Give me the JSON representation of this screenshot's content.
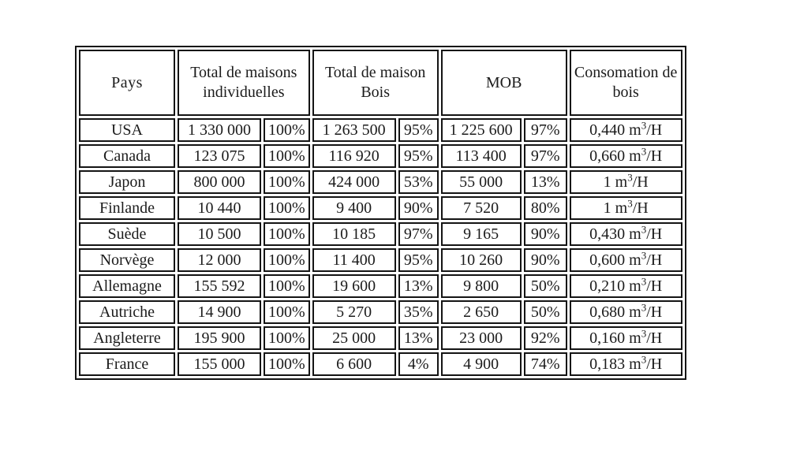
{
  "chart_data": {
    "type": "table",
    "columns": [
      {
        "label": "Pays"
      },
      {
        "label": "Total de maisons individuelles"
      },
      {
        "label": "Total de maison Bois"
      },
      {
        "label": "MOB"
      },
      {
        "label": "Consomation de bois"
      }
    ],
    "unit": {
      "base": "m",
      "exponent": "3",
      "per": "/H"
    },
    "rows": [
      {
        "pays": "USA",
        "total_ind": "1 330 000",
        "total_ind_pct": "100%",
        "bois": "1 263 500",
        "bois_pct": "95%",
        "mob": "1 225 600",
        "mob_pct": "97%",
        "conso": "0,440"
      },
      {
        "pays": "Canada",
        "total_ind": "123 075",
        "total_ind_pct": "100%",
        "bois": "116 920",
        "bois_pct": "95%",
        "mob": "113 400",
        "mob_pct": "97%",
        "conso": "0,660"
      },
      {
        "pays": "Japon",
        "total_ind": "800 000",
        "total_ind_pct": "100%",
        "bois": "424 000",
        "bois_pct": "53%",
        "mob": "55 000",
        "mob_pct": "13%",
        "conso": "1"
      },
      {
        "pays": "Finlande",
        "total_ind": "10 440",
        "total_ind_pct": "100%",
        "bois": "9 400",
        "bois_pct": "90%",
        "mob": "7 520",
        "mob_pct": "80%",
        "conso": "1"
      },
      {
        "pays": "Suède",
        "total_ind": "10 500",
        "total_ind_pct": "100%",
        "bois": "10 185",
        "bois_pct": "97%",
        "mob": "9 165",
        "mob_pct": "90%",
        "conso": "0,430"
      },
      {
        "pays": "Norvège",
        "total_ind": "12 000",
        "total_ind_pct": "100%",
        "bois": "11 400",
        "bois_pct": "95%",
        "mob": "10 260",
        "mob_pct": "90%",
        "conso": "0,600"
      },
      {
        "pays": "Allemagne",
        "total_ind": "155 592",
        "total_ind_pct": "100%",
        "bois": "19 600",
        "bois_pct": "13%",
        "mob": "9 800",
        "mob_pct": "50%",
        "conso": "0,210"
      },
      {
        "pays": "Autriche",
        "total_ind": "14 900",
        "total_ind_pct": "100%",
        "bois": "5 270",
        "bois_pct": "35%",
        "mob": "2 650",
        "mob_pct": "50%",
        "conso": "0,680"
      },
      {
        "pays": "Angleterre",
        "total_ind": "195 900",
        "total_ind_pct": "100%",
        "bois": "25 000",
        "bois_pct": "13%",
        "mob": "23 000",
        "mob_pct": "92%",
        "conso": "0,160"
      },
      {
        "pays": "France",
        "total_ind": "155 000",
        "total_ind_pct": "100%",
        "bois": "6 600",
        "bois_pct": "4%",
        "mob": "4 900",
        "mob_pct": "74%",
        "conso": "0,183"
      }
    ]
  },
  "colors": {
    "border": "#141414",
    "background": "#ffffff",
    "text": "#1b1b1b"
  }
}
